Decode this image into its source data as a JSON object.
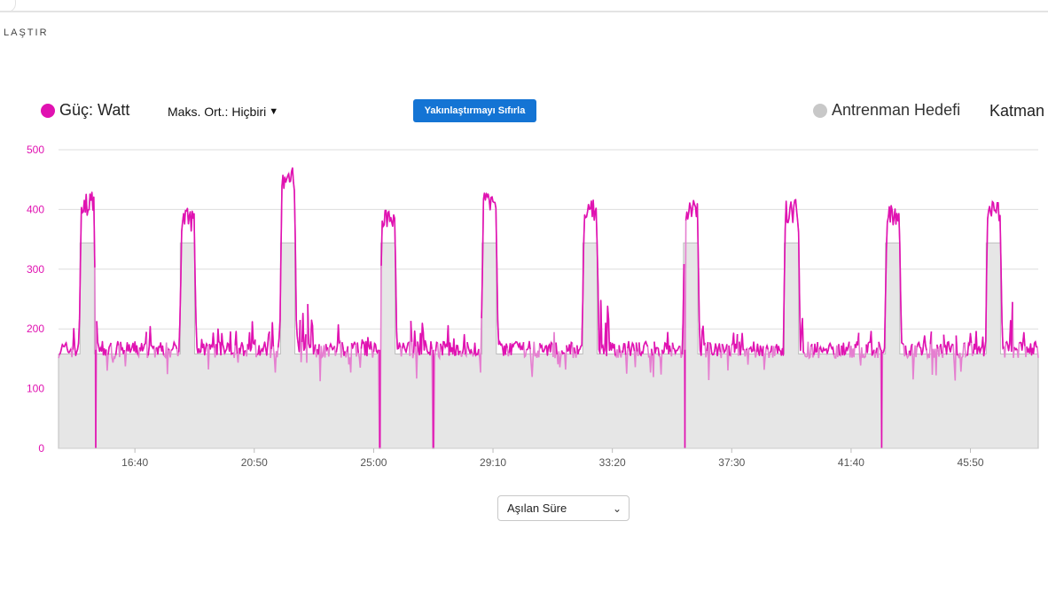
{
  "header": {
    "breadcrumb": "LAŞTIR"
  },
  "legend": {
    "power_label": "Güç: Watt",
    "power_color": "#e012b1",
    "target_label": "Antrenman Hedefi",
    "target_color": "#c8c8c8"
  },
  "controls": {
    "max_avg_label": "Maks. Ort.: Hiçbiri",
    "reset_zoom_label": "Yakınlaştırmayı Sıfırla",
    "layers_label": "Katman",
    "x_axis_select_value": "Aşılan Süre"
  },
  "chart_data": {
    "type": "line",
    "ylim": [
      0,
      500
    ],
    "y_ticks": [
      0,
      100,
      200,
      300,
      400,
      500
    ],
    "x_ticks": [
      "16:40",
      "20:50",
      "25:00",
      "29:10",
      "33:20",
      "37:30",
      "41:40",
      "45:50"
    ],
    "xlim_seconds": [
      840,
      2892
    ],
    "x_tick_seconds": [
      1000,
      1250,
      1500,
      1750,
      2000,
      2250,
      2500,
      2750
    ],
    "grid": true,
    "series": [
      {
        "name": "Güç: Watt",
        "color": "#e012b1",
        "baseline_watts": 165,
        "intervals": [
          {
            "start_s": 885,
            "end_s": 915,
            "peak_w": 442
          },
          {
            "start_s": 1095,
            "end_s": 1125,
            "peak_w": 415
          },
          {
            "start_s": 1305,
            "end_s": 1335,
            "peak_w": 483
          },
          {
            "start_s": 1515,
            "end_s": 1545,
            "peak_w": 415
          },
          {
            "start_s": 1727,
            "end_s": 1757,
            "peak_w": 440
          },
          {
            "start_s": 1938,
            "end_s": 1968,
            "peak_w": 432
          },
          {
            "start_s": 2149,
            "end_s": 2179,
            "peak_w": 432
          },
          {
            "start_s": 2360,
            "end_s": 2390,
            "peak_w": 430
          },
          {
            "start_s": 2572,
            "end_s": 2602,
            "peak_w": 422
          },
          {
            "start_s": 2783,
            "end_s": 2813,
            "peak_w": 428
          }
        ],
        "dropouts_s": [
          918,
          1513,
          1625,
          2152,
          2564
        ]
      },
      {
        "name": "Antrenman Hedefi",
        "color": "#c8c8c8",
        "recovery_w": 158,
        "work_w": 344
      }
    ]
  }
}
